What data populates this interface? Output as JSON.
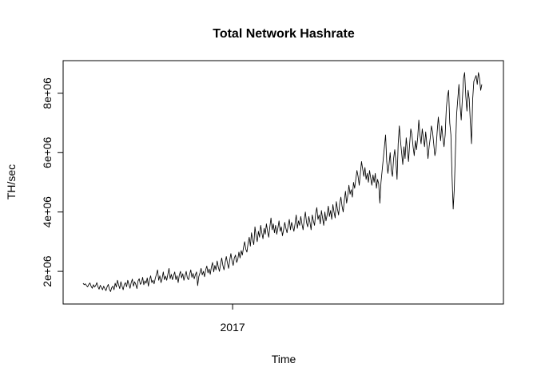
{
  "chart_data": {
    "type": "line",
    "title": "Total Network Hashrate",
    "xlabel": "Time",
    "ylabel": "TH/sec",
    "x_ticks": [
      {
        "value": 2017.0,
        "label": "2017"
      }
    ],
    "y_ticks": [
      {
        "value": 2000000,
        "label": "2e+06"
      },
      {
        "value": 4000000,
        "label": "4e+06"
      },
      {
        "value": 6000000,
        "label": "6e+06"
      },
      {
        "value": 8000000,
        "label": "8e+06"
      }
    ],
    "xlim": [
      2015.98,
      2018.63
    ],
    "ylim": [
      900000,
      9100000
    ],
    "grid": false,
    "series_color": "#000000",
    "series": [
      {
        "x_start": 2016.1,
        "x_end": 2018.5,
        "values": [
          1600000,
          1550000,
          1580000,
          1520000,
          1480000,
          1560000,
          1610000,
          1500000,
          1430000,
          1550000,
          1470000,
          1520000,
          1620000,
          1480000,
          1400000,
          1530000,
          1460000,
          1380000,
          1500000,
          1420000,
          1350000,
          1480000,
          1560000,
          1400000,
          1320000,
          1450000,
          1500000,
          1380000,
          1600000,
          1470000,
          1700000,
          1550000,
          1420000,
          1650000,
          1500000,
          1380000,
          1560000,
          1620000,
          1480000,
          1700000,
          1560000,
          1430000,
          1620000,
          1740000,
          1500000,
          1650000,
          1560000,
          1420000,
          1680000,
          1750000,
          1560000,
          1620000,
          1800000,
          1550000,
          1680000,
          1600000,
          1780000,
          1500000,
          1720000,
          1850000,
          1620000,
          1700000,
          1580000,
          1760000,
          1900000,
          2050000,
          1700000,
          1850000,
          1620000,
          1760000,
          1980000,
          1720000,
          1840000,
          1700000,
          1900000,
          2100000,
          1750000,
          1900000,
          1720000,
          1860000,
          1980000,
          1720000,
          1850000,
          1620000,
          1880000,
          2000000,
          1780000,
          1920000,
          1700000,
          1850000,
          2000000,
          1780000,
          1720000,
          1900000,
          2050000,
          1800000,
          1930000,
          1750000,
          1880000,
          1980000,
          1520000,
          1820000,
          1950000,
          2100000,
          1880000,
          2000000,
          1820000,
          2050000,
          2180000,
          1950000,
          2080000,
          1900000,
          2150000,
          2300000,
          1980000,
          2200000,
          2050000,
          2350000,
          2150000,
          2000000,
          2250000,
          2450000,
          2200000,
          2050000,
          2300000,
          2500000,
          2280000,
          2100000,
          2380000,
          2600000,
          2350000,
          2200000,
          2450000,
          2550000,
          2300000,
          2400000,
          2650000,
          2450000,
          2700000,
          2550000,
          2800000,
          3000000,
          2750000,
          2650000,
          2950000,
          3150000,
          2850000,
          3300000,
          3050000,
          2900000,
          3500000,
          3200000,
          3000000,
          3350000,
          3150000,
          3550000,
          3300000,
          3100000,
          3450000,
          3250000,
          3600000,
          3350000,
          3150000,
          3500000,
          3800000,
          3400000,
          3600000,
          3300000,
          3550000,
          3250000,
          3450000,
          3700000,
          3350000,
          3500000,
          3200000,
          3400000,
          3650000,
          3450000,
          3300000,
          3550000,
          3750000,
          3400000,
          3650000,
          3500000,
          3350000,
          3600000,
          3900000,
          3450000,
          3700000,
          3550000,
          3850000,
          3600000,
          3400000,
          3750000,
          4000000,
          3650000,
          3500000,
          3850000,
          3650000,
          3400000,
          3900000,
          3700000,
          3550000,
          3950000,
          4150000,
          3750000,
          3900000,
          3600000,
          4050000,
          3800000,
          3550000,
          4000000,
          3700000,
          3900000,
          4200000,
          3850000,
          4050000,
          3750000,
          4250000,
          4000000,
          3800000,
          4350000,
          4100000,
          3900000,
          4300000,
          4500000,
          4200000,
          4000000,
          4400000,
          4700000,
          4300000,
          4550000,
          4900000,
          4600000,
          4750000,
          4500000,
          5000000,
          4800000,
          5100000,
          5400000,
          5200000,
          4900000,
          5300000,
          5700000,
          5450000,
          5200000,
          5500000,
          5100000,
          5300000,
          5000000,
          5400000,
          5150000,
          4900000,
          5250000,
          5000000,
          5300000,
          4800000,
          5100000,
          4950000,
          4300000,
          5000000,
          5400000,
          5800000,
          6200000,
          6600000,
          5700000,
          5300000,
          5600000,
          6000000,
          5400000,
          5200000,
          5800000,
          6100000,
          5700000,
          5100000,
          6300000,
          6900000,
          6400000,
          6000000,
          5600000,
          6200000,
          5800000,
          6500000,
          6100000,
          5700000,
          6300000,
          6800000,
          6600000,
          6200000,
          5900000,
          6400000,
          6100000,
          6500000,
          7100000,
          6600000,
          6300000,
          6800000,
          6500000,
          6200000,
          6700000,
          6300000,
          5800000,
          6200000,
          6500000,
          6900000,
          6700000,
          6300000,
          5900000,
          6100000,
          6700000,
          7200000,
          6800000,
          6400000,
          6900000,
          6500000,
          6200000,
          6600000,
          7500000,
          7900000,
          8100000,
          7000000,
          6600000,
          5200000,
          4100000,
          4800000,
          6100000,
          7300000,
          7800000,
          8300000,
          7600000,
          7100000,
          7800000,
          8500000,
          8700000,
          7900000,
          7400000,
          8100000,
          7800000,
          7000000,
          6300000,
          7800000,
          8400000,
          8500000,
          8600000,
          8300000,
          8700000,
          8500000,
          8100000,
          8300000
        ]
      }
    ]
  }
}
